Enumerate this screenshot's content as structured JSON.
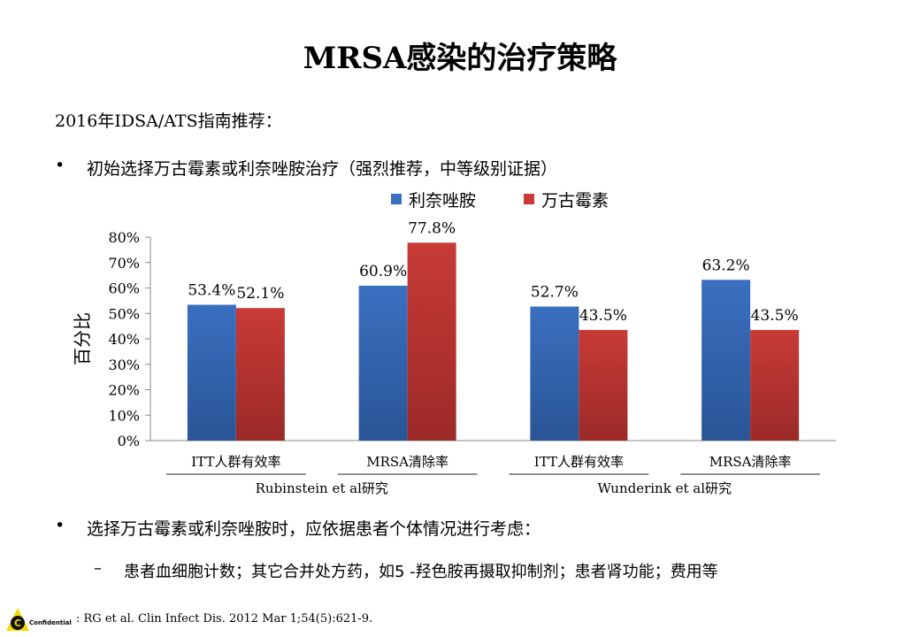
{
  "slide": {
    "title": "MRSA感染的治疗策略",
    "intro": "2016年IDSA/ATS指南推荐：",
    "bullet1": "初始选择万古霉素或利奈唑胺治疗（强烈推荐，中等级别证据）",
    "bullet2": "选择万古霉素或利奈唑胺时，应依据患者个体情况进行考虑：",
    "sub_bullet": "患者血细胞计数；其它合并处方药，如5 -羟色胺再摄取抑制剂；患者肾功能；费用等",
    "bullet_glyph": "•",
    "dash_glyph": "–"
  },
  "footer": {
    "logo_letter": "C",
    "confidential": "Confidential",
    "reference": ": RG et al. Clin Infect Dis. 2012 Mar 1;54(5):621-9."
  },
  "chart_data": {
    "type": "bar",
    "ylabel": "百分比",
    "ylim": [
      0,
      80
    ],
    "ytick_labels": [
      "0%",
      "10%",
      "20%",
      "30%",
      "40%",
      "50%",
      "60%",
      "70%",
      "80%"
    ],
    "categories": [
      "ITT人群有效率",
      "MRSA清除率",
      "ITT人群有效率",
      "MRSA清除率"
    ],
    "groups": [
      {
        "label": "Rubinstein et al研究",
        "categories": [
          0,
          1
        ]
      },
      {
        "label": "Wunderink et al研究",
        "categories": [
          2,
          3
        ]
      }
    ],
    "series": [
      {
        "name": "利奈唑胺",
        "color": "#3a6fc0",
        "values": [
          53.4,
          60.9,
          52.7,
          63.2
        ],
        "labels": [
          "53.4%",
          "60.9%",
          "52.7%",
          "63.2%"
        ]
      },
      {
        "name": "万古霉素",
        "color": "#c83a36",
        "values": [
          52.1,
          77.8,
          43.5,
          43.5
        ],
        "labels": [
          "52.1%",
          "77.8%",
          "43.5%",
          "43.5%"
        ]
      }
    ],
    "legend_position": "top",
    "grid": false
  }
}
